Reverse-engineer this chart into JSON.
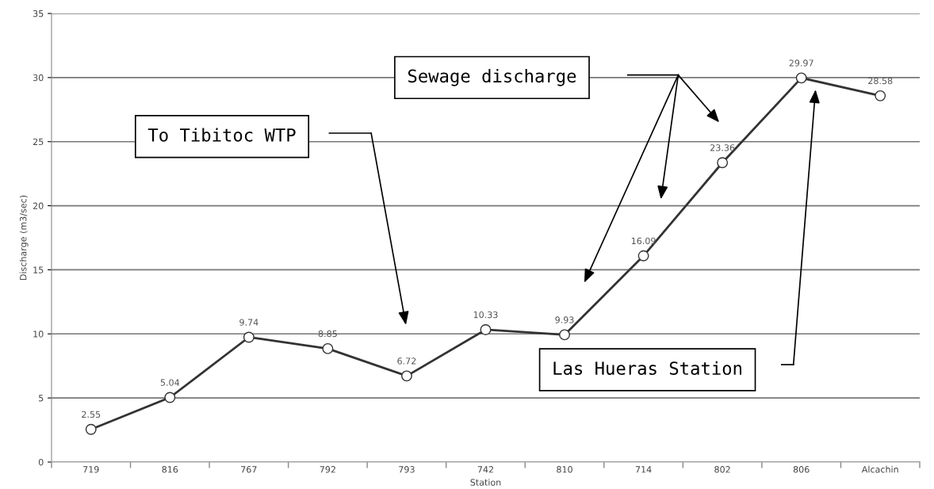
{
  "chart_data": {
    "type": "line",
    "xlabel": "Station",
    "ylabel": "Discharge (m3/sec)",
    "categories": [
      "719",
      "816",
      "767",
      "792",
      "793",
      "742",
      "810",
      "714",
      "802",
      "806",
      "Alcachin"
    ],
    "series": [
      {
        "color": "#333333",
        "values": [
          2.55,
          5.04,
          9.74,
          8.85,
          6.72,
          10.33,
          9.93,
          16.09,
          23.36,
          29.97,
          28.58
        ]
      }
    ],
    "value_labels": [
      "2.55",
      "5.04",
      "9.74",
      "8.85",
      "6.72",
      "10.33",
      "9.93",
      "16.09",
      "23.36",
      "29.97",
      "28.58"
    ],
    "ylim": [
      0,
      35
    ],
    "yticks": [
      0,
      5,
      10,
      15,
      20,
      25,
      30,
      35
    ],
    "grid": "y",
    "marker": "circle",
    "line_style": "solid",
    "annotations": [
      "To Tibitoc WTP",
      "Sewage discharge",
      "Las Hueras Station"
    ]
  }
}
